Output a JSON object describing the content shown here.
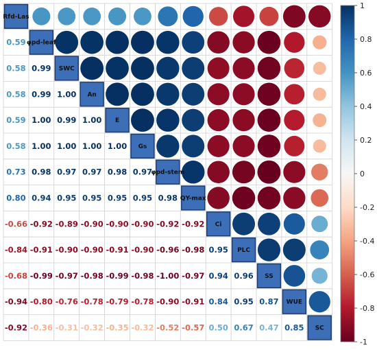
{
  "chart_data": {
    "type": "heatmap",
    "variables": [
      "Rfd-Las",
      "φpd-leaf",
      "SWC",
      "An",
      "E",
      "Gs",
      "φpd-stem",
      "QY-max",
      "Ci",
      "PLC",
      "SS",
      "WUE",
      "SC"
    ],
    "matrix": [
      [
        1.0,
        0.59,
        0.58,
        0.58,
        0.59,
        0.58,
        0.73,
        0.8,
        -0.66,
        -0.84,
        -0.68,
        -0.94,
        -0.92
      ],
      [
        0.59,
        1.0,
        0.99,
        0.99,
        1.0,
        1.0,
        0.98,
        0.94,
        -0.92,
        -0.91,
        -0.99,
        -0.8,
        -0.36
      ],
      [
        0.58,
        0.99,
        1.0,
        1.0,
        0.99,
        1.0,
        0.97,
        0.95,
        -0.89,
        -0.9,
        -0.97,
        -0.76,
        -0.31
      ],
      [
        0.58,
        0.99,
        1.0,
        1.0,
        1.0,
        1.0,
        0.97,
        0.95,
        -0.9,
        -0.9,
        -0.98,
        -0.78,
        -0.32
      ],
      [
        0.59,
        1.0,
        0.99,
        1.0,
        1.0,
        1.0,
        0.98,
        0.95,
        -0.9,
        -0.91,
        -0.99,
        -0.79,
        -0.35
      ],
      [
        0.58,
        1.0,
        1.0,
        1.0,
        1.0,
        1.0,
        0.97,
        0.95,
        -0.9,
        -0.9,
        -0.98,
        -0.78,
        -0.32
      ],
      [
        0.73,
        0.98,
        0.97,
        0.97,
        0.98,
        0.97,
        1.0,
        0.98,
        -0.92,
        -0.96,
        -1.0,
        -0.9,
        -0.52
      ],
      [
        0.8,
        0.94,
        0.95,
        0.95,
        0.95,
        0.95,
        0.98,
        1.0,
        -0.92,
        -0.98,
        -0.97,
        -0.91,
        -0.57
      ],
      [
        -0.66,
        -0.92,
        -0.89,
        -0.9,
        -0.9,
        -0.9,
        -0.92,
        -0.92,
        1.0,
        0.95,
        0.94,
        0.84,
        0.5
      ],
      [
        -0.84,
        -0.91,
        -0.9,
        -0.9,
        -0.91,
        -0.9,
        -0.96,
        -0.98,
        0.95,
        1.0,
        0.96,
        0.95,
        0.67
      ],
      [
        -0.68,
        -0.99,
        -0.97,
        -0.98,
        -0.99,
        -0.98,
        -1.0,
        -0.97,
        0.94,
        0.96,
        1.0,
        0.87,
        0.47
      ],
      [
        -0.94,
        -0.8,
        -0.76,
        -0.78,
        -0.79,
        -0.78,
        -0.9,
        -0.91,
        0.84,
        0.95,
        0.87,
        1.0,
        0.85
      ],
      [
        -0.92,
        -0.36,
        -0.31,
        -0.32,
        -0.35,
        -0.32,
        -0.52,
        -0.57,
        0.5,
        0.67,
        0.47,
        0.85,
        1.0
      ]
    ],
    "lower_triangle": "numbers",
    "upper_triangle": "circles",
    "colorbar": {
      "ticks": [
        1,
        0.8,
        0.6,
        0.4,
        0.2,
        0,
        -0.2,
        -0.4,
        -0.6,
        -0.8,
        -1
      ],
      "range": [
        -1,
        1
      ],
      "colors": {
        "neg": "#67001f",
        "mid": "#f7f7f7",
        "pos": "#053061"
      }
    },
    "legend": "right",
    "grid": true
  }
}
